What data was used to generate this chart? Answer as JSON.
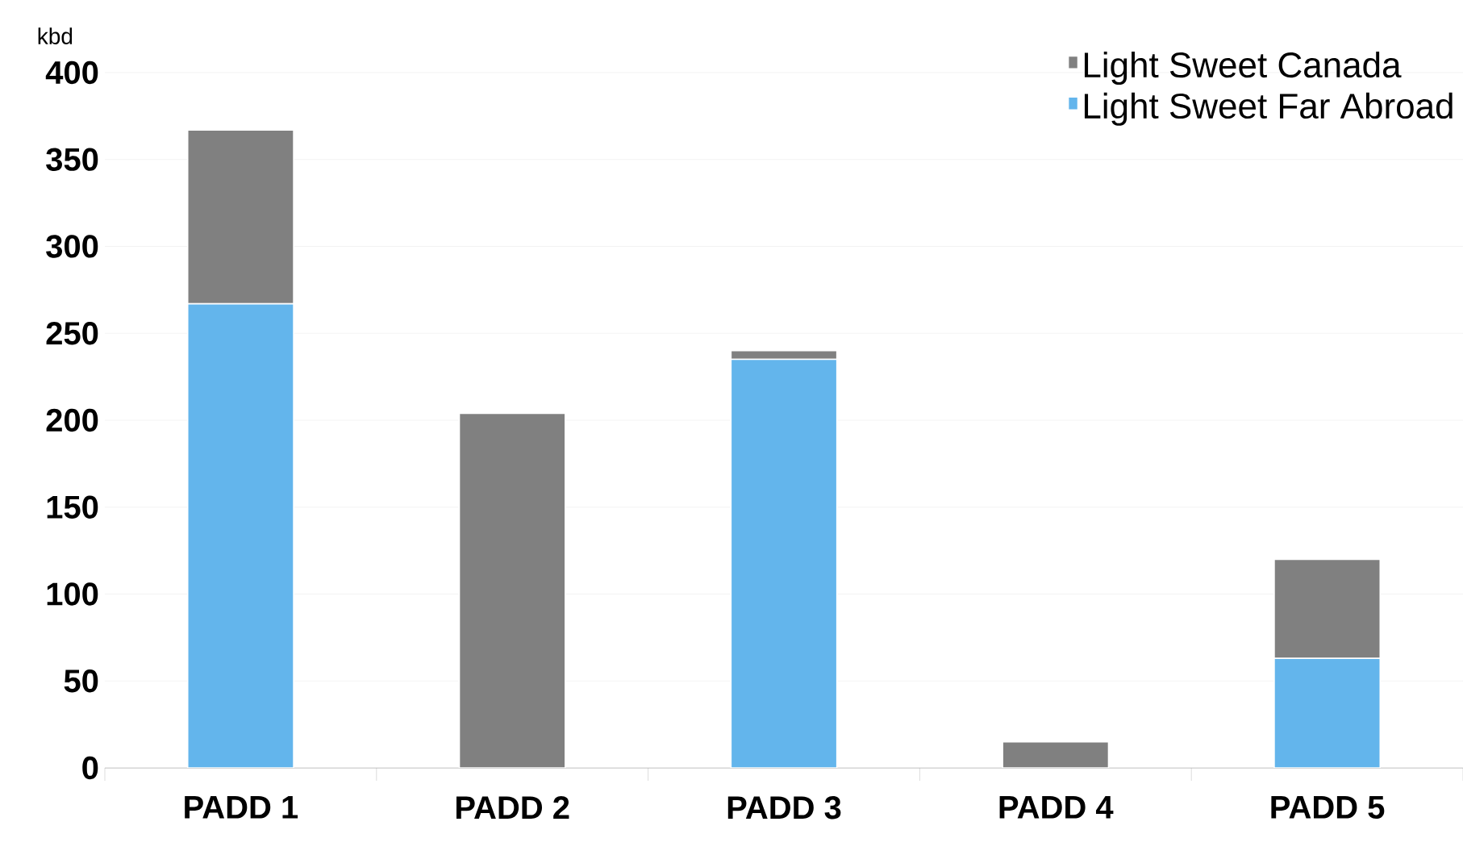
{
  "chart_data": {
    "type": "bar",
    "stacked": true,
    "ylabel": "kbd",
    "categories": [
      "PADD 1",
      "PADD 2",
      "PADD 3",
      "PADD 4",
      "PADD 5"
    ],
    "series": [
      {
        "name": "Light Sweet Far Abroad",
        "color": "#63b5ec",
        "values": [
          267,
          0,
          235,
          0,
          63
        ]
      },
      {
        "name": "Light Sweet Canada",
        "color": "#808080",
        "values": [
          100,
          204,
          5,
          15,
          57
        ]
      }
    ],
    "ylim": [
      0,
      400
    ],
    "yticks": [
      0,
      50,
      100,
      150,
      200,
      250,
      300,
      350,
      400
    ],
    "grid": "y",
    "legend": "top right"
  }
}
